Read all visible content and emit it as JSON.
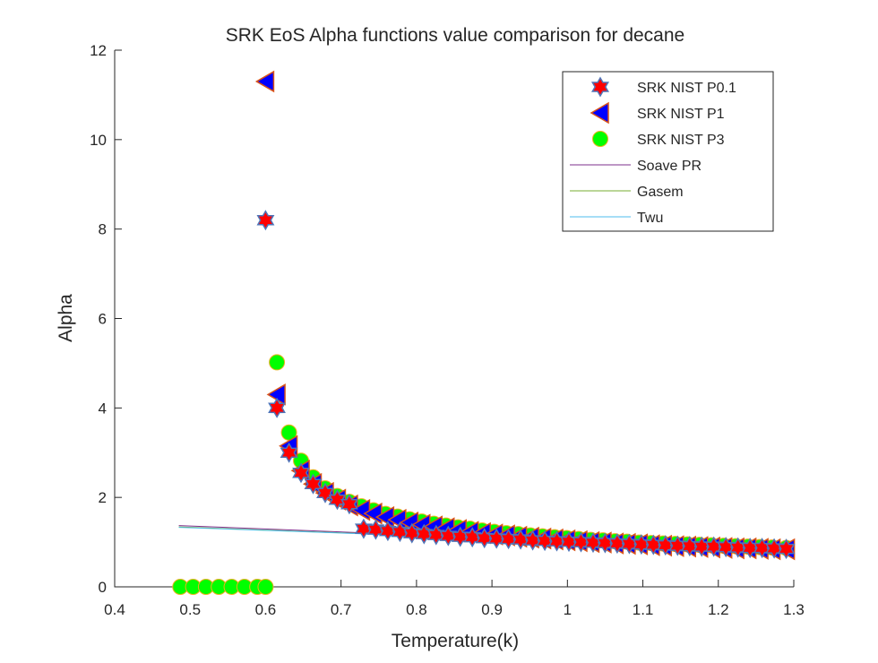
{
  "chart_data": {
    "type": "scatter",
    "title": "SRK EoS Alpha functions value comparison for decane",
    "xlabel": "Temperature(k)",
    "ylabel": "Alpha",
    "xlim": [
      0.4,
      1.3
    ],
    "ylim": [
      0,
      12
    ],
    "xticks": [
      "0.4",
      "0.5",
      "0.6",
      "0.7",
      "0.8",
      "0.9",
      "1",
      "1.1",
      "1.2",
      "1.3"
    ],
    "yticks": [
      "0",
      "2",
      "4",
      "6",
      "8",
      "10",
      "12"
    ],
    "grid": false,
    "legend_position": "top-right",
    "series": [
      {
        "name": "SRK NIST P0.1",
        "marker": "hexagram",
        "face_color": "#ff0000",
        "edge_color": "#4f74b8",
        "x": [
          0.6,
          0.615,
          0.631,
          0.647,
          0.663,
          0.679,
          0.695,
          0.711,
          0.73,
          0.746,
          0.762,
          0.778,
          0.794,
          0.81,
          0.826,
          0.842,
          0.858,
          0.874,
          0.89,
          0.906,
          0.922,
          0.938,
          0.954,
          0.97,
          0.986,
          1.002,
          1.018,
          1.034,
          1.05,
          1.066,
          1.082,
          1.098,
          1.114,
          1.13,
          1.146,
          1.162,
          1.178,
          1.194,
          1.21,
          1.226,
          1.242,
          1.258,
          1.274,
          1.29
        ],
        "y": [
          8.2,
          4.0,
          3.0,
          2.55,
          2.3,
          2.1,
          1.95,
          1.85,
          1.3,
          1.28,
          1.25,
          1.23,
          1.2,
          1.18,
          1.16,
          1.14,
          1.12,
          1.11,
          1.09,
          1.08,
          1.07,
          1.06,
          1.04,
          1.03,
          1.02,
          1.01,
          1.0,
          0.99,
          0.98,
          0.97,
          0.96,
          0.95,
          0.94,
          0.93,
          0.92,
          0.91,
          0.9,
          0.9,
          0.89,
          0.88,
          0.87,
          0.87,
          0.86,
          0.85
        ]
      },
      {
        "name": "SRK NIST P1",
        "marker": "triangle-left",
        "face_color": "#0000ff",
        "edge_color": "#d95319",
        "x": [
          0.6,
          0.615,
          0.631,
          0.647,
          0.663,
          0.679,
          0.695,
          0.711,
          0.727,
          0.743,
          0.759,
          0.775,
          0.791,
          0.807,
          0.823,
          0.839,
          0.855,
          0.871,
          0.887,
          0.903,
          0.919,
          0.935,
          0.951,
          0.967,
          0.983,
          0.999,
          1.015,
          1.031,
          1.047,
          1.063,
          1.079,
          1.095,
          1.111,
          1.127,
          1.143,
          1.159,
          1.175,
          1.191,
          1.207,
          1.223,
          1.239,
          1.255,
          1.271,
          1.29
        ],
        "y": [
          11.3,
          4.3,
          3.15,
          2.6,
          2.3,
          2.1,
          1.95,
          1.82,
          1.72,
          1.64,
          1.56,
          1.5,
          1.44,
          1.39,
          1.35,
          1.31,
          1.27,
          1.23,
          1.2,
          1.17,
          1.15,
          1.12,
          1.1,
          1.08,
          1.06,
          1.04,
          1.02,
          1.0,
          0.99,
          0.97,
          0.96,
          0.95,
          0.93,
          0.92,
          0.91,
          0.9,
          0.89,
          0.88,
          0.87,
          0.86,
          0.86,
          0.85,
          0.84,
          0.84
        ]
      },
      {
        "name": "SRK NIST P3",
        "marker": "circle",
        "face_color": "#00ff00",
        "edge_color": "#edb120",
        "x": [
          0.487,
          0.504,
          0.521,
          0.538,
          0.555,
          0.572,
          0.589,
          0.6,
          0.615,
          0.631,
          0.647,
          0.663,
          0.679,
          0.695,
          0.711,
          0.727,
          0.743,
          0.759,
          0.775,
          0.791,
          0.807,
          0.823,
          0.839,
          0.855,
          0.871,
          0.887,
          0.903,
          0.919,
          0.935,
          0.951,
          0.967,
          0.983,
          0.999,
          1.015,
          1.031,
          1.047,
          1.063,
          1.079,
          1.095,
          1.111,
          1.127,
          1.143,
          1.159,
          1.175,
          1.191,
          1.207,
          1.223,
          1.239,
          1.255,
          1.271,
          1.29
        ],
        "y": [
          0,
          0,
          0,
          0,
          0,
          0,
          0,
          0,
          5.02,
          3.45,
          2.82,
          2.45,
          2.2,
          2.03,
          1.9,
          1.8,
          1.71,
          1.63,
          1.57,
          1.51,
          1.46,
          1.41,
          1.37,
          1.33,
          1.3,
          1.26,
          1.23,
          1.2,
          1.18,
          1.15,
          1.13,
          1.11,
          1.09,
          1.07,
          1.05,
          1.04,
          1.02,
          1.01,
          0.99,
          0.98,
          0.97,
          0.96,
          0.95,
          0.94,
          0.93,
          0.92,
          0.91,
          0.9,
          0.89,
          0.88,
          0.87
        ]
      },
      {
        "name": "Soave PR",
        "type": "line",
        "color": "#7e2f8e",
        "x": [
          0.485,
          1.3
        ],
        "y": [
          1.37,
          0.83
        ]
      },
      {
        "name": "Gasem",
        "type": "line",
        "color": "#77ac30",
        "x": [
          0.485,
          1.3
        ],
        "y": [
          1.34,
          0.84
        ]
      },
      {
        "name": "Twu",
        "type": "line",
        "color": "#4dbeee",
        "x": [
          0.485,
          1.3
        ],
        "y": [
          1.33,
          0.85
        ]
      }
    ]
  }
}
